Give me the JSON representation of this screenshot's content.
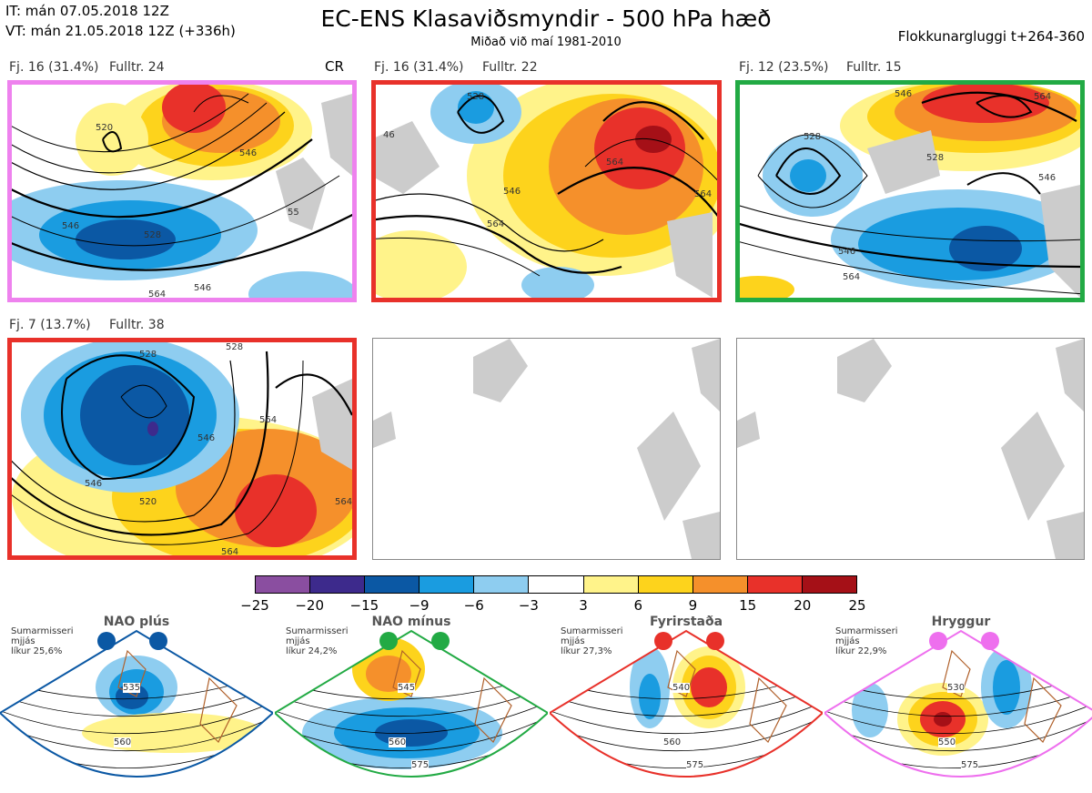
{
  "header": {
    "it_line": "IT: mán 07.05.2018 12Z",
    "vt_line": "VT: mán 21.05.2018 12Z  (+336h)",
    "title": "EC-ENS Klasaviðsmyndir - 500 hPa hæð",
    "subtitle": "Miðað við maí 1981-2010",
    "window": "Flokkunargluggi t+264-360"
  },
  "clusters": [
    {
      "label": "Fj. 16 (31.4%)",
      "member": "Fulltr. 24",
      "tag": "CR",
      "border": "#ee82ee"
    },
    {
      "label": "Fj. 16 (31.4%)",
      "member": "Fulltr. 22",
      "tag": "",
      "border": "#e8312a"
    },
    {
      "label": "Fj. 12 (23.5%)",
      "member": "Fulltr. 15",
      "tag": "",
      "border": "#22aa44"
    },
    {
      "label": "Fj. 7 (13.7%)",
      "member": "Fulltr. 38",
      "tag": "",
      "border": "#e8312a"
    }
  ],
  "contour_labels": {
    "c1": [
      "520",
      "546",
      "528",
      "546",
      "564",
      "546",
      "55"
    ],
    "c2": [
      "528",
      "46",
      "546",
      "564",
      "564",
      "564"
    ],
    "c3": [
      "546",
      "528",
      "546",
      "546",
      "564",
      "528",
      "564"
    ],
    "c4": [
      "528",
      "528",
      "546",
      "520",
      "564",
      "546",
      "564",
      "564"
    ]
  },
  "colorbar": {
    "ticks": [
      "−25",
      "−20",
      "−15",
      "−9",
      "−6",
      "−3",
      "3",
      "6",
      "9",
      "15",
      "20",
      "25"
    ],
    "colors": [
      "#8a4ea0",
      "#3d2a8c",
      "#0b58a4",
      "#1a9ce0",
      "#8ecdf0",
      "#ffffff",
      "#fff38a",
      "#fdd31c",
      "#f5902b",
      "#e8312a",
      "#a51017"
    ]
  },
  "regimes": [
    {
      "name": "NAO plús",
      "season": "Sumarmisseri",
      "note": "mjjás",
      "prob": "líkur 25,6%",
      "color": "#0b58a4",
      "labels": [
        "535",
        "560"
      ]
    },
    {
      "name": "NAO mínus",
      "season": "Sumarmisseri",
      "note": "mjjás",
      "prob": "líkur 24,2%",
      "color": "#22aa44",
      "labels": [
        "545",
        "560",
        "575"
      ]
    },
    {
      "name": "Fyrirstaða",
      "season": "Sumarmisseri",
      "note": "mjjás",
      "prob": "líkur 27,3%",
      "color": "#e8312a",
      "labels": [
        "540",
        "560",
        "575"
      ]
    },
    {
      "name": "Hryggur",
      "season": "Sumarmisseri",
      "note": "mjjás",
      "prob": "líkur 22,9%",
      "color": "#ee6fee",
      "labels": [
        "530",
        "550",
        "575"
      ]
    }
  ]
}
